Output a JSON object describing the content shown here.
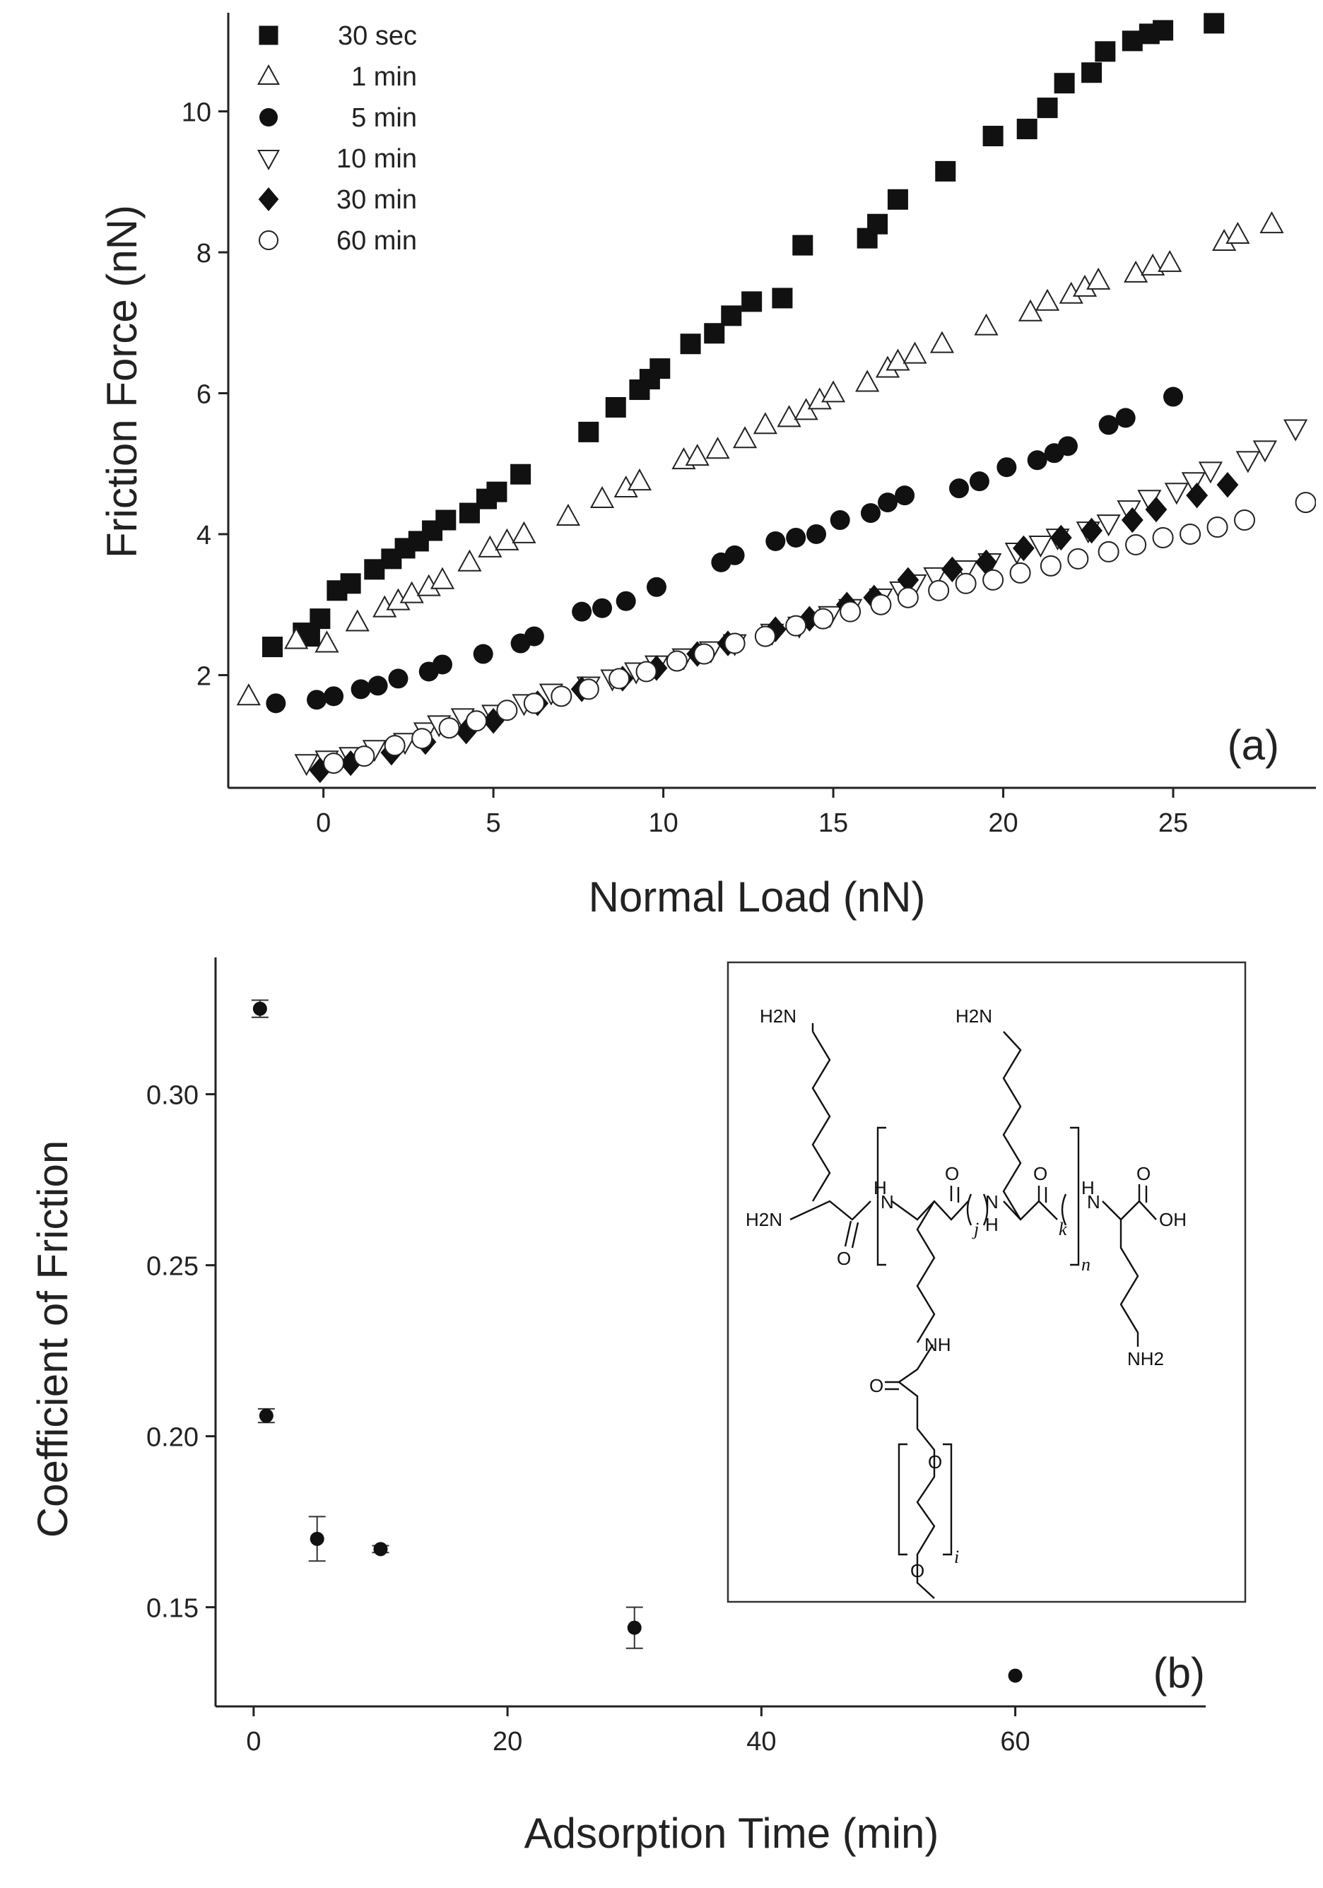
{
  "chart_data": [
    {
      "panel": "a",
      "type": "scatter",
      "panel_label": "(a)",
      "xlabel": "Normal Load (nN)",
      "ylabel": "Friction Force (nN)",
      "xlim": [
        -2.8,
        29.2
      ],
      "ylim": [
        0.4,
        11.4
      ],
      "xticks": [
        0,
        5,
        10,
        15,
        20,
        25
      ],
      "yticks": [
        2,
        4,
        6,
        8,
        10
      ],
      "grid": false,
      "legend_position": "top-left",
      "series": [
        {
          "name": "30 sec",
          "marker": "square-filled",
          "x": [
            -1.5,
            -0.6,
            -0.4,
            -0.1,
            0.4,
            0.8,
            1.5,
            2.0,
            2.4,
            2.8,
            3.2,
            3.6,
            4.3,
            4.8,
            5.1,
            5.8,
            7.8,
            8.6,
            9.3,
            9.6,
            9.9,
            10.8,
            11.5,
            12.0,
            12.6,
            13.5,
            14.1,
            16.0,
            16.3,
            16.9,
            18.3,
            19.7,
            20.7,
            21.3,
            21.8,
            22.6,
            23.0,
            23.8,
            24.3,
            24.7,
            26.2
          ],
          "y": [
            2.4,
            2.6,
            2.55,
            2.8,
            3.2,
            3.3,
            3.5,
            3.65,
            3.8,
            3.9,
            4.05,
            4.2,
            4.3,
            4.5,
            4.6,
            4.85,
            5.45,
            5.8,
            6.05,
            6.2,
            6.35,
            6.7,
            6.85,
            7.1,
            7.3,
            7.35,
            8.1,
            8.2,
            8.4,
            8.75,
            9.15,
            9.65,
            9.75,
            10.05,
            10.4,
            10.55,
            10.85,
            11.0,
            11.1,
            11.15,
            11.25
          ]
        },
        {
          "name": "1 min",
          "marker": "triangle-up-open",
          "x": [
            -2.2,
            -0.8,
            0.1,
            1.0,
            1.8,
            2.2,
            2.6,
            3.1,
            3.5,
            4.3,
            4.9,
            5.4,
            5.9,
            7.2,
            8.2,
            8.9,
            9.3,
            10.6,
            11.0,
            11.6,
            12.4,
            13.0,
            13.7,
            14.2,
            14.6,
            15.0,
            16.0,
            16.6,
            16.9,
            17.4,
            18.2,
            19.5,
            20.8,
            21.3,
            22.0,
            22.4,
            22.8,
            23.9,
            24.4,
            24.9,
            26.5,
            26.9,
            27.9
          ],
          "y": [
            1.7,
            2.5,
            2.45,
            2.75,
            2.95,
            3.05,
            3.15,
            3.25,
            3.35,
            3.6,
            3.8,
            3.9,
            4.0,
            4.25,
            4.5,
            4.65,
            4.75,
            5.05,
            5.1,
            5.2,
            5.35,
            5.55,
            5.65,
            5.75,
            5.9,
            6.0,
            6.15,
            6.35,
            6.45,
            6.55,
            6.7,
            6.95,
            7.15,
            7.3,
            7.4,
            7.5,
            7.6,
            7.7,
            7.8,
            7.85,
            8.15,
            8.25,
            8.4
          ]
        },
        {
          "name": "5 min",
          "marker": "circle-filled",
          "x": [
            -1.4,
            -0.2,
            0.3,
            1.1,
            1.6,
            2.2,
            3.1,
            3.5,
            4.7,
            5.8,
            6.2,
            7.6,
            8.2,
            8.9,
            9.8,
            11.7,
            12.1,
            13.3,
            13.9,
            14.5,
            15.2,
            16.1,
            16.6,
            17.1,
            18.7,
            19.3,
            20.1,
            21.0,
            21.5,
            21.9,
            23.1,
            23.6,
            25.0
          ],
          "y": [
            1.6,
            1.65,
            1.7,
            1.8,
            1.85,
            1.95,
            2.05,
            2.15,
            2.3,
            2.45,
            2.55,
            2.9,
            2.95,
            3.05,
            3.25,
            3.6,
            3.7,
            3.9,
            3.95,
            4.0,
            4.2,
            4.3,
            4.45,
            4.55,
            4.65,
            4.75,
            4.95,
            5.05,
            5.15,
            5.25,
            5.55,
            5.65,
            5.95
          ]
        },
        {
          "name": "10 min",
          "marker": "triangle-down-open",
          "x": [
            -0.5,
            0.1,
            0.8,
            1.5,
            2.4,
            3.0,
            3.4,
            4.1,
            5.0,
            5.9,
            6.7,
            7.8,
            8.5,
            9.2,
            9.8,
            10.6,
            11.4,
            12.1,
            13.2,
            14.0,
            14.9,
            15.5,
            16.4,
            17.0,
            17.4,
            18.0,
            18.9,
            19.6,
            20.4,
            21.1,
            21.6,
            22.5,
            23.1,
            23.7,
            24.3,
            25.1,
            25.6,
            26.1,
            27.2,
            27.7,
            28.6
          ],
          "y": [
            0.75,
            0.8,
            0.85,
            0.95,
            1.05,
            1.2,
            1.3,
            1.4,
            1.45,
            1.6,
            1.75,
            1.85,
            1.95,
            2.05,
            2.15,
            2.25,
            2.35,
            2.45,
            2.6,
            2.7,
            2.85,
            2.95,
            3.1,
            3.2,
            3.3,
            3.4,
            3.5,
            3.6,
            3.75,
            3.85,
            3.95,
            4.05,
            4.15,
            4.35,
            4.5,
            4.6,
            4.75,
            4.9,
            5.05,
            5.2,
            5.5
          ]
        },
        {
          "name": "30 min",
          "marker": "diamond-filled",
          "x": [
            -0.1,
            0.8,
            2.0,
            3.0,
            4.2,
            5.0,
            6.3,
            7.6,
            8.8,
            9.8,
            11.0,
            11.9,
            13.3,
            14.3,
            15.4,
            16.2,
            17.2,
            18.5,
            19.5,
            20.6,
            21.7,
            22.6,
            23.8,
            24.5,
            25.7,
            26.6
          ],
          "y": [
            0.65,
            0.75,
            0.9,
            1.05,
            1.2,
            1.35,
            1.6,
            1.8,
            1.95,
            2.1,
            2.3,
            2.45,
            2.65,
            2.8,
            3.0,
            3.1,
            3.35,
            3.5,
            3.6,
            3.8,
            3.95,
            4.05,
            4.2,
            4.35,
            4.55,
            4.7
          ]
        },
        {
          "name": "60 min",
          "marker": "circle-open",
          "x": [
            0.3,
            1.2,
            2.1,
            2.9,
            3.7,
            4.5,
            5.4,
            6.2,
            7.0,
            7.8,
            8.7,
            9.5,
            10.4,
            11.2,
            12.1,
            13.0,
            13.9,
            14.7,
            15.5,
            16.4,
            17.2,
            18.1,
            18.9,
            19.7,
            20.5,
            21.4,
            22.2,
            23.1,
            23.9,
            24.7,
            25.5,
            26.3,
            27.1,
            28.9
          ],
          "y": [
            0.75,
            0.85,
            1.0,
            1.1,
            1.25,
            1.35,
            1.5,
            1.6,
            1.7,
            1.8,
            1.95,
            2.05,
            2.2,
            2.3,
            2.45,
            2.55,
            2.7,
            2.8,
            2.9,
            3.0,
            3.1,
            3.2,
            3.3,
            3.35,
            3.45,
            3.55,
            3.65,
            3.75,
            3.85,
            3.95,
            4.0,
            4.1,
            4.2,
            4.45
          ]
        }
      ]
    },
    {
      "panel": "b",
      "type": "scatter",
      "panel_label": "(b)",
      "xlabel": "Adsorption Time (min)",
      "ylabel": "Coefficient of Friction",
      "xlim": [
        -3,
        75
      ],
      "ylim": [
        0.121,
        0.34
      ],
      "xticks": [
        0,
        20,
        40,
        60
      ],
      "yticks": [
        "0.15",
        "0.20",
        "0.25",
        "0.30"
      ],
      "grid": false,
      "series": [
        {
          "name": "coefficient of friction",
          "marker": "circle-filled",
          "x": [
            0.5,
            1,
            5,
            10,
            30,
            60
          ],
          "y": [
            0.325,
            0.206,
            0.17,
            0.167,
            0.144,
            0.13
          ],
          "error": [
            0.0025,
            0.002,
            0.0065,
            0.001,
            0.006,
            0.0005
          ]
        }
      ]
    }
  ],
  "structure": {
    "labels": {
      "h2n_top_left": "H2N",
      "h2n_top_mid": "H2N",
      "h2n_left": "H2N",
      "nh_bracket_left": "H",
      "n_bracket_left": "N",
      "o_carbonyl_left": "O",
      "o_bracket_mid": "O",
      "subscript_j": "j",
      "nh_mid_n": "N",
      "nh_mid_h": "H",
      "o_bracket_right": "O",
      "subscript_k": "k",
      "subscript_n": "n",
      "nh_right_h": "H",
      "nh_right_n": "N",
      "o_acid": "O",
      "oh_acid": "OH",
      "nh_side": "NH",
      "o_amide": "O",
      "o_peg1": "O",
      "o_peg2": "O",
      "subscript_i": "i",
      "nh2_right": "NH2"
    }
  }
}
